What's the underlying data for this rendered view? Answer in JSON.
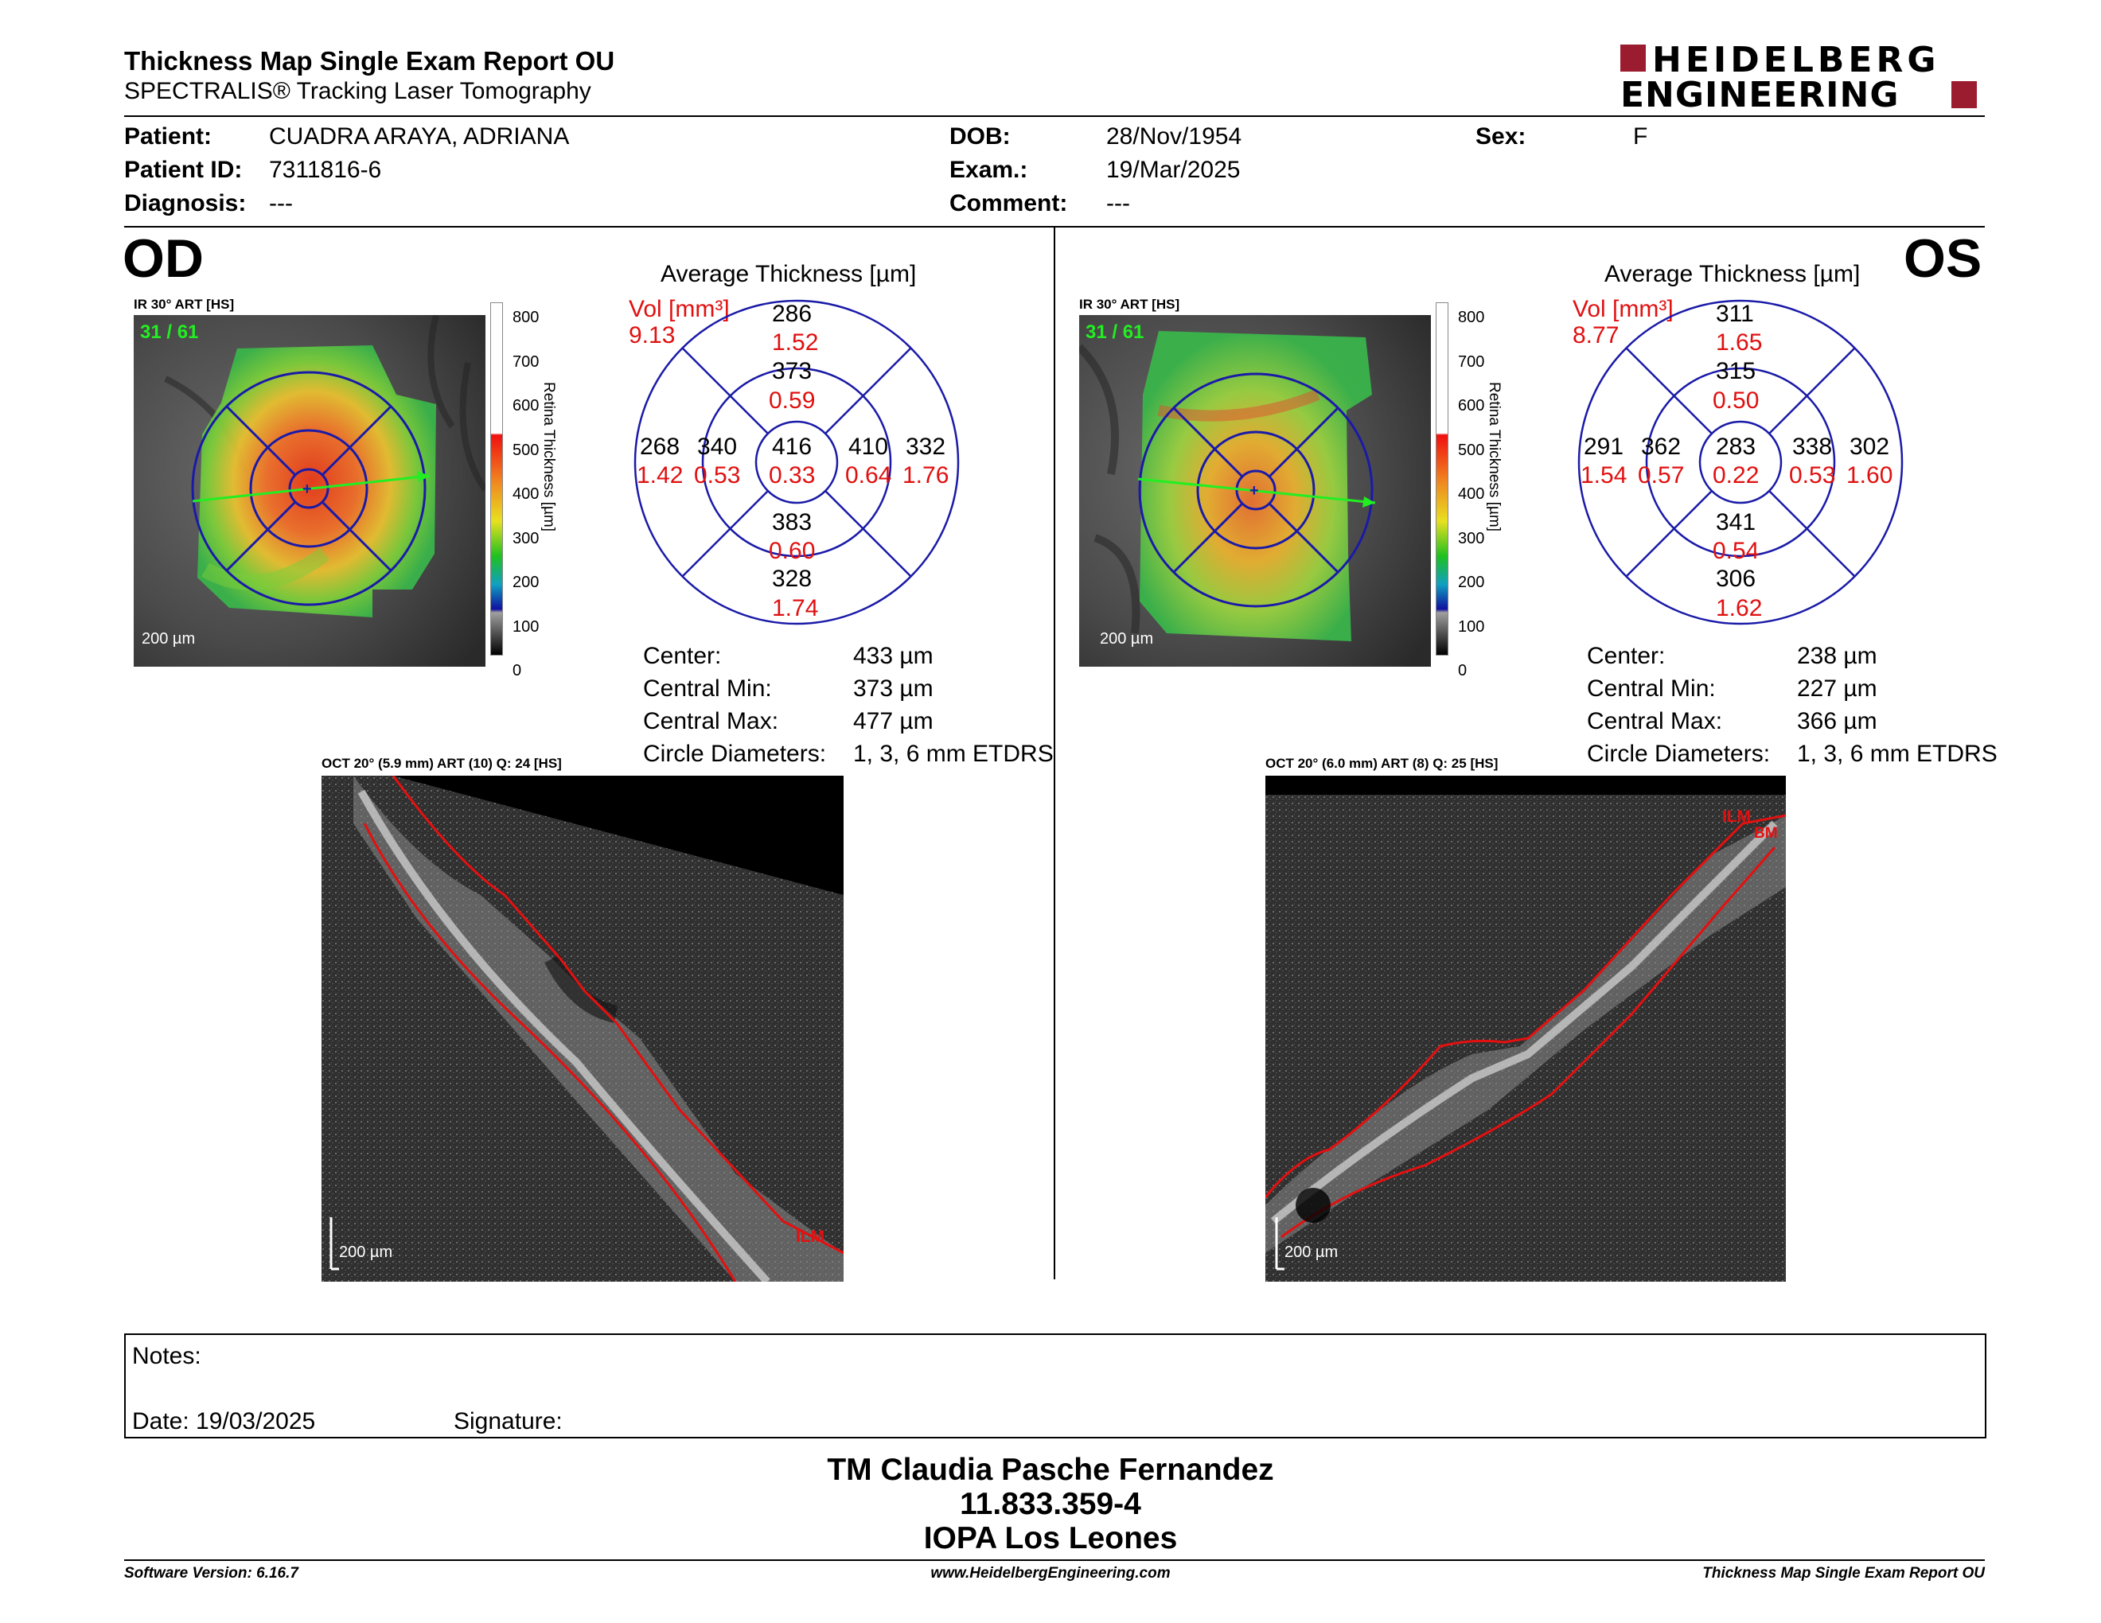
{
  "header": {
    "title": "Thickness Map Single Exam Report OU",
    "subtitle": "SPECTRALIS® Tracking Laser Tomography",
    "logo_line1": "HEIDELBERG",
    "logo_line2": "ENGINEERING"
  },
  "patient": {
    "patient_label": "Patient:",
    "patient_value": "CUADRA ARAYA, ADRIANA",
    "id_label": "Patient ID:",
    "id_value": "7311816-6",
    "diag_label": "Diagnosis:",
    "diag_value": "---",
    "dob_label": "DOB:",
    "dob_value": "28/Nov/1954",
    "exam_label": "Exam.:",
    "exam_value": "19/Mar/2025",
    "comment_label": "Comment:",
    "comment_value": "---",
    "sex_label": "Sex:",
    "sex_value": "F"
  },
  "od": {
    "eye": "OD",
    "ir_label": "IR 30° ART [HS]",
    "frame": "31 / 61",
    "scale": "200 µm",
    "colorbar_ticks": [
      "800",
      "700",
      "600",
      "500",
      "400",
      "300",
      "200",
      "100",
      "0"
    ],
    "colorbar_title": "Retina Thickness [µm]",
    "avg_title": "Average Thickness [µm]",
    "vol_label": "Vol [mm³]",
    "vol_value": "9.13",
    "grid": {
      "sup_out": "286",
      "sup_out_v": "1.52",
      "sup_in": "373",
      "sup_in_v": "0.59",
      "center": "416",
      "center_v": "0.33",
      "nas_in": "340",
      "nas_in_v": "0.53",
      "nas_out": "268",
      "nas_out_v": "1.42",
      "tmp_in": "410",
      "tmp_in_v": "0.64",
      "tmp_out": "332",
      "tmp_out_v": "1.76",
      "inf_in": "383",
      "inf_in_v": "0.60",
      "inf_out": "328",
      "inf_out_v": "1.74"
    },
    "stats": {
      "center_label": "Center:",
      "center_value": "433 µm",
      "min_label": "Central Min:",
      "min_value": "373 µm",
      "max_label": "Central Max:",
      "max_value": "477 µm",
      "diam_label": "Circle Diameters:",
      "diam_value": "1, 3, 6 mm ETDRS"
    },
    "oct_label": "OCT 20° (5.9 mm) ART (10) Q: 24 [HS]",
    "oct_scale": "200 µm",
    "oct_markers": [
      "ILM"
    ]
  },
  "os": {
    "eye": "OS",
    "ir_label": "IR 30° ART [HS]",
    "frame": "31 / 61",
    "scale": "200 µm",
    "colorbar_ticks": [
      "800",
      "700",
      "600",
      "500",
      "400",
      "300",
      "200",
      "100",
      "0"
    ],
    "colorbar_title": "Retina Thickness [µm]",
    "avg_title": "Average Thickness [µm]",
    "vol_label": "Vol [mm³]",
    "vol_value": "8.77",
    "grid": {
      "sup_out": "311",
      "sup_out_v": "1.65",
      "sup_in": "315",
      "sup_in_v": "0.50",
      "center": "283",
      "center_v": "0.22",
      "nas_in": "338",
      "nas_in_v": "0.53",
      "nas_out": "302",
      "nas_out_v": "1.60",
      "tmp_in": "362",
      "tmp_in_v": "0.57",
      "tmp_out": "291",
      "tmp_out_v": "1.54",
      "inf_in": "341",
      "inf_in_v": "0.54",
      "inf_out": "306",
      "inf_out_v": "1.62"
    },
    "stats": {
      "center_label": "Center:",
      "center_value": "238 µm",
      "min_label": "Central Min:",
      "min_value": "227 µm",
      "max_label": "Central Max:",
      "max_value": "366 µm",
      "diam_label": "Circle Diameters:",
      "diam_value": "1, 3, 6 mm ETDRS"
    },
    "oct_label": "OCT 20° (6.0 mm) ART (8) Q: 25 [HS]",
    "oct_scale": "200 µm",
    "oct_markers": [
      "ILM",
      "BM"
    ]
  },
  "notes": {
    "notes_label": "Notes:",
    "date_label": "Date: 19/03/2025",
    "signature_label": "Signature:"
  },
  "signer": {
    "name": "TM Claudia Pasche Fernandez",
    "rut": "11.833.359-4",
    "place": "IOPA Los Leones"
  },
  "footer": {
    "software": "Software Version: 6.16.7",
    "website": "www.HeidelbergEngineering.com",
    "report": "Thickness Map Single Exam Report OU"
  },
  "colors": {
    "brand_red": "#9b1c2e",
    "value_red": "#e01010",
    "grid_blue": "#1a1aa8",
    "frame_green": "#22dd22"
  }
}
